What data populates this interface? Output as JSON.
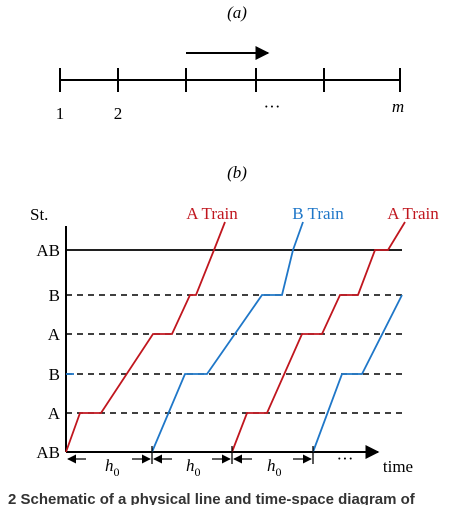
{
  "panel_a": {
    "label": "(a)",
    "stations": [
      "1",
      "2",
      "···",
      "m"
    ]
  },
  "panel_b": {
    "label": "(b)",
    "y_axis_label": "St.",
    "x_axis_label": "time",
    "station_labels": [
      "AB",
      "B",
      "A",
      "B",
      "A",
      "AB"
    ],
    "trains": [
      "A Train",
      "B Train",
      "A Train"
    ],
    "headways": [
      {
        "symbol": "h",
        "sub": "0"
      },
      {
        "symbol": "h",
        "sub": "0"
      },
      {
        "symbol": "h",
        "sub": "0"
      }
    ],
    "ellipsis": "···"
  },
  "caption": "2  Schematic of a physical line and time-space diagram of"
}
